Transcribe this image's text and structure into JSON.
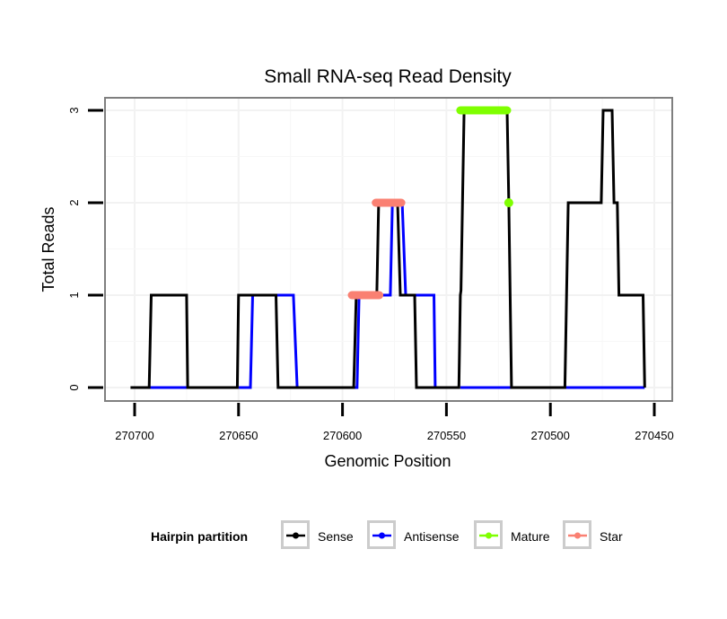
{
  "chart_data": {
    "type": "line",
    "title": "Small RNA-seq Read Density",
    "xlabel": "Genomic Position",
    "ylabel": "Total Reads",
    "x_reversed": true,
    "xlim": [
      270706,
      270442
    ],
    "ylim": [
      -0.15,
      3.15
    ],
    "x_ticks": [
      270700,
      270650,
      270600,
      270550,
      270500,
      270450
    ],
    "x_tick_labels": [
      "270700",
      "270650",
      "270600",
      "270550",
      "270500",
      "270450"
    ],
    "y_ticks": [
      0,
      1,
      2,
      3
    ],
    "y_tick_labels": [
      "0",
      "1",
      "2",
      "3"
    ],
    "grid": true,
    "legend": {
      "title": "Hairpin partition",
      "position": "bottom",
      "entries": [
        {
          "label": "Sense",
          "color": "#000000"
        },
        {
          "label": "Antisense",
          "color": "#0000ff"
        },
        {
          "label": "Mature",
          "color": "#7fff00"
        },
        {
          "label": "Star",
          "color": "#fa8072"
        }
      ]
    },
    "series": [
      {
        "name": "Sense",
        "color": "#000000",
        "points": [
          [
            270702,
            0
          ],
          [
            270693,
            0
          ],
          [
            270692,
            1
          ],
          [
            270675,
            1
          ],
          [
            270674.5,
            0
          ],
          [
            270650.6,
            0
          ],
          [
            270650,
            1
          ],
          [
            270632,
            1
          ],
          [
            270631,
            0
          ],
          [
            270594.6,
            0
          ],
          [
            270593.4,
            1
          ],
          [
            270583.5,
            1
          ],
          [
            270582.6,
            2
          ],
          [
            270573.5,
            2
          ],
          [
            270572.2,
            1
          ],
          [
            270565.3,
            1
          ],
          [
            270564.4,
            0
          ],
          [
            270544,
            0
          ],
          [
            270543.3,
            1
          ],
          [
            270543,
            1.05
          ],
          [
            270541.5,
            3
          ],
          [
            270520.8,
            3
          ],
          [
            270520,
            2
          ],
          [
            270518.7,
            0
          ],
          [
            270493,
            0
          ],
          [
            270491.4,
            2
          ],
          [
            270475.5,
            2
          ],
          [
            270474.6,
            3
          ],
          [
            270470.3,
            3
          ],
          [
            270469.4,
            2
          ],
          [
            270467.8,
            2
          ],
          [
            270467,
            1
          ],
          [
            270455.4,
            1
          ],
          [
            270454.6,
            0
          ]
        ]
      },
      {
        "name": "Antisense",
        "color": "#0000ff",
        "points": [
          [
            270692.5,
            0
          ],
          [
            270674.5,
            0
          ],
          [
            270650,
            0
          ],
          [
            270644.3,
            0
          ],
          [
            270643.2,
            1
          ],
          [
            270623.6,
            1
          ],
          [
            270621.8,
            0
          ],
          [
            270593,
            0
          ],
          [
            270592,
            1
          ],
          [
            270577,
            1
          ],
          [
            270576,
            2
          ],
          [
            270571.3,
            2
          ],
          [
            270569.6,
            1
          ],
          [
            270556,
            1
          ],
          [
            270555.4,
            0
          ],
          [
            270543.3,
            0
          ],
          [
            270518.7,
            0
          ],
          [
            270493,
            0
          ],
          [
            270454.6,
            0
          ]
        ],
        "segments_break_after": [
          1,
          14,
          16
        ]
      },
      {
        "name": "Mature",
        "color": "#7fff00",
        "points": [
          [
            270543.3,
            3
          ],
          [
            270520.8,
            3
          ]
        ],
        "extra_points": [
          [
            270520,
            2
          ]
        ]
      },
      {
        "name": "Star",
        "color": "#fa8072",
        "segments": [
          [
            [
              270595.5,
              1
            ],
            [
              270582.3,
              1
            ]
          ],
          [
            [
              270584,
              2
            ],
            [
              270571.7,
              2
            ]
          ]
        ]
      }
    ]
  }
}
